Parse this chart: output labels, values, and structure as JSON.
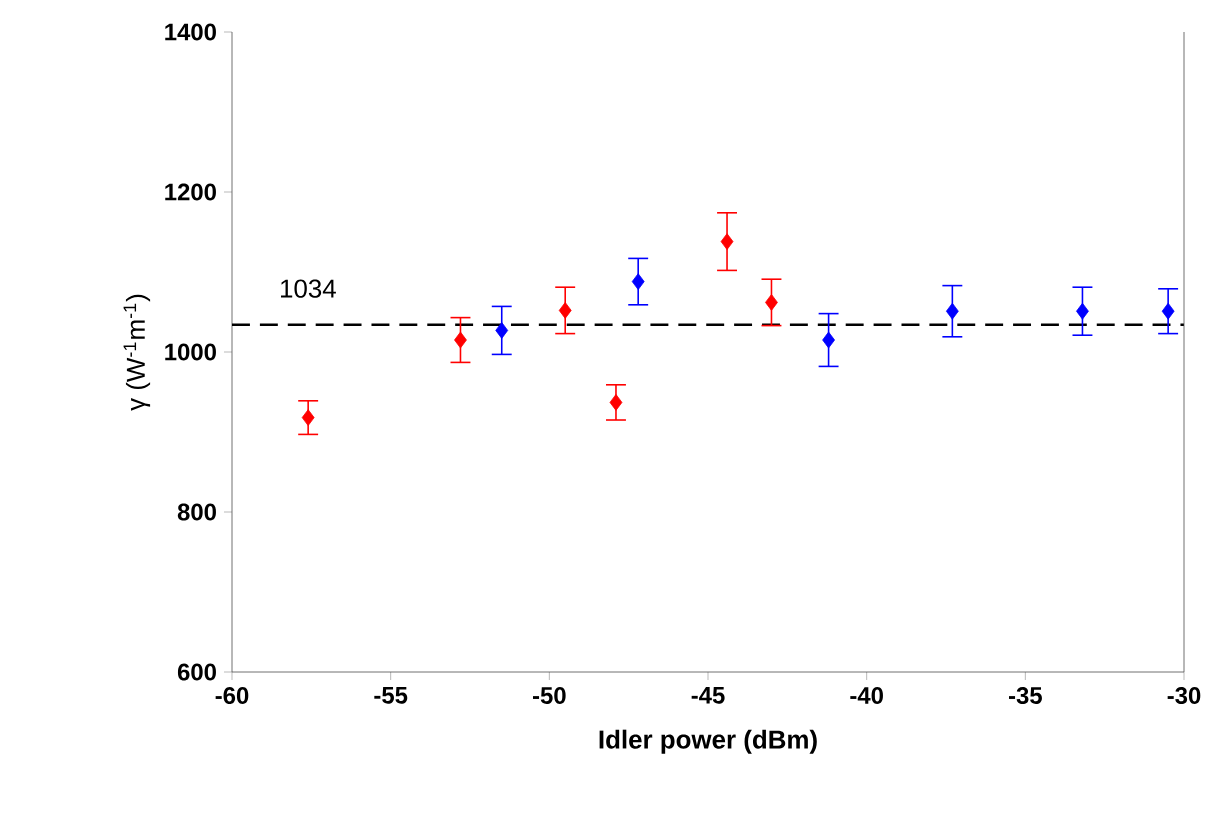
{
  "chart_data": {
    "type": "scatter",
    "xlabel": "Idler power (dBm)",
    "ylabel": "γ (W$^{-1}$m$^{-1}$)",
    "xlim": [
      -60,
      -30
    ],
    "ylim": [
      600,
      1400
    ],
    "xticks": [
      -60,
      -55,
      -50,
      -45,
      -40,
      -35,
      -30
    ],
    "yticks": [
      600,
      800,
      1000,
      1200,
      1400
    ],
    "marker": "diamond",
    "series": [
      {
        "color": "#ff0000",
        "x": [
          -57.6,
          -52.8,
          -49.5,
          -47.9,
          -44.4,
          -43.0
        ],
        "values": [
          918,
          1015,
          1052,
          937,
          1138,
          1062
        ],
        "errors": [
          21,
          28,
          29,
          22,
          36,
          29
        ]
      },
      {
        "color": "#0000ff",
        "x": [
          -51.5,
          -47.2,
          -41.2,
          -37.3,
          -33.2,
          -30.5
        ],
        "values": [
          1027,
          1088,
          1015,
          1051,
          1051,
          1051
        ],
        "errors": [
          30,
          29,
          33,
          32,
          30,
          28
        ]
      }
    ],
    "ref_lines": [
      {
        "axis": "y",
        "value": 1034,
        "label": "1034",
        "color": "#000000",
        "line_style": "dashed"
      }
    ]
  }
}
